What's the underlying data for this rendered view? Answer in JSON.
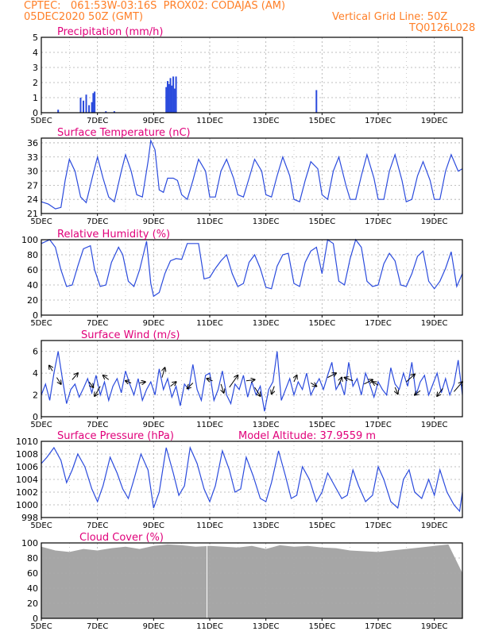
{
  "header": {
    "line1_left": "CPTEC:   061:53W-03:16S  PROX02: CODAJAS (AM)",
    "line2_left": "05DEC2020 50Z (GMT)",
    "line2_right": "Vertical Grid Line: 50Z",
    "line3_right": "TQ0126L028"
  },
  "colors": {
    "header": "#ff7f27",
    "title": "#e0007a",
    "series": "#2b4bdd",
    "cloud": "#a6a6a6",
    "grid": "#aaaaaa",
    "frame": "#000000"
  },
  "x_ticks": [
    "5DEC",
    "7DEC",
    "9DEC",
    "11DEC",
    "13DEC",
    "15DEC",
    "17DEC",
    "19DEC"
  ],
  "x_tick_days": [
    5,
    7,
    9,
    11,
    13,
    15,
    17,
    19
  ],
  "x_range": [
    5,
    20
  ],
  "chart_data": [
    {
      "id": "precip",
      "type": "bar",
      "title": "Precipitation (mm/h)",
      "ylim": [
        0,
        5
      ],
      "yticks": [
        0,
        1,
        2,
        3,
        4,
        5
      ],
      "grid": true,
      "x": [
        5.6,
        6.4,
        6.5,
        6.6,
        6.7,
        6.8,
        6.85,
        6.9,
        7.3,
        7.6,
        9.45,
        9.5,
        9.55,
        9.6,
        9.65,
        9.7,
        9.75,
        9.8,
        14.8
      ],
      "values": [
        0.2,
        1.0,
        0.8,
        1.2,
        0.5,
        0.7,
        1.3,
        1.4,
        0.1,
        0.1,
        1.7,
        2.1,
        1.9,
        2.3,
        1.8,
        2.4,
        1.6,
        2.4,
        1.5
      ]
    },
    {
      "id": "temp",
      "type": "line",
      "title": "Surface Temperature (nC)",
      "ylim": [
        21,
        37
      ],
      "yticks": [
        21,
        24,
        27,
        30,
        33,
        36
      ],
      "grid": true,
      "x": [
        5.0,
        5.25,
        5.5,
        5.7,
        5.85,
        6.0,
        6.2,
        6.4,
        6.6,
        6.85,
        7.0,
        7.2,
        7.4,
        7.6,
        7.85,
        8.0,
        8.2,
        8.4,
        8.6,
        8.8,
        8.9,
        9.05,
        9.2,
        9.35,
        9.5,
        9.7,
        9.85,
        10.0,
        10.2,
        10.4,
        10.6,
        10.85,
        11.0,
        11.2,
        11.4,
        11.6,
        11.85,
        12.0,
        12.2,
        12.4,
        12.6,
        12.85,
        13.0,
        13.2,
        13.4,
        13.6,
        13.85,
        14.0,
        14.2,
        14.4,
        14.6,
        14.85,
        15.0,
        15.2,
        15.4,
        15.6,
        15.85,
        16.0,
        16.2,
        16.4,
        16.6,
        16.85,
        17.0,
        17.2,
        17.4,
        17.6,
        17.85,
        18.0,
        18.2,
        18.4,
        18.6,
        18.85,
        19.0,
        19.2,
        19.4,
        19.6,
        19.85,
        20.0
      ],
      "values": [
        23.5,
        23.0,
        22.0,
        22.3,
        28.0,
        32.5,
        30.0,
        24.5,
        23.3,
        29.5,
        33.0,
        28.5,
        24.5,
        23.5,
        30.0,
        33.5,
        30.0,
        25.0,
        24.5,
        32.0,
        36.5,
        34.5,
        26.0,
        25.5,
        28.5,
        28.5,
        28.0,
        25.0,
        24.0,
        28.0,
        32.5,
        30.0,
        24.5,
        24.5,
        30.0,
        32.5,
        28.5,
        25.0,
        24.5,
        28.5,
        32.5,
        30.0,
        25.0,
        24.5,
        29.0,
        33.0,
        29.0,
        24.0,
        23.5,
        28.0,
        32.0,
        30.5,
        25.0,
        24.0,
        30.0,
        33.0,
        27.0,
        24.0,
        24.0,
        29.0,
        33.5,
        28.5,
        24.0,
        24.0,
        30.0,
        33.5,
        28.0,
        23.5,
        24.0,
        29.0,
        32.0,
        28.0,
        24.0,
        24.0,
        30.0,
        33.5,
        30.0,
        30.5
      ]
    },
    {
      "id": "rh",
      "type": "line",
      "title": "Relative Humidity (%)",
      "ylim": [
        0,
        100
      ],
      "yticks": [
        0,
        20,
        40,
        60,
        80,
        100
      ],
      "grid": true,
      "x": [
        5.0,
        5.3,
        5.5,
        5.7,
        5.9,
        6.1,
        6.3,
        6.5,
        6.75,
        6.9,
        7.1,
        7.3,
        7.5,
        7.75,
        7.9,
        8.1,
        8.3,
        8.5,
        8.75,
        8.9,
        9.0,
        9.2,
        9.4,
        9.6,
        9.8,
        10.0,
        10.2,
        10.4,
        10.6,
        10.8,
        11.0,
        11.2,
        11.4,
        11.6,
        11.8,
        12.0,
        12.2,
        12.4,
        12.6,
        12.8,
        13.0,
        13.2,
        13.4,
        13.6,
        13.8,
        14.0,
        14.2,
        14.4,
        14.6,
        14.8,
        15.0,
        15.2,
        15.4,
        15.6,
        15.8,
        16.0,
        16.2,
        16.4,
        16.6,
        16.8,
        17.0,
        17.2,
        17.4,
        17.6,
        17.8,
        18.0,
        18.2,
        18.4,
        18.6,
        18.8,
        19.0,
        19.2,
        19.4,
        19.6,
        19.8,
        20.0
      ],
      "values": [
        95,
        100,
        90,
        60,
        38,
        40,
        65,
        88,
        92,
        60,
        38,
        40,
        70,
        90,
        80,
        45,
        38,
        60,
        98,
        42,
        25,
        30,
        55,
        72,
        75,
        74,
        95,
        95,
        95,
        48,
        50,
        62,
        72,
        80,
        55,
        38,
        42,
        70,
        80,
        62,
        37,
        35,
        65,
        80,
        82,
        42,
        38,
        70,
        85,
        90,
        55,
        100,
        95,
        45,
        40,
        75,
        100,
        90,
        45,
        38,
        40,
        68,
        82,
        72,
        40,
        38,
        55,
        78,
        85,
        45,
        35,
        45,
        62,
        84,
        38,
        55
      ]
    },
    {
      "id": "wind",
      "type": "line",
      "title": "Surface Wind (m/s)",
      "ylim": [
        0,
        7
      ],
      "yticks": [
        0,
        2,
        4,
        6
      ],
      "grid": true,
      "x": [
        5.0,
        5.15,
        5.3,
        5.45,
        5.6,
        5.75,
        5.9,
        6.05,
        6.2,
        6.35,
        6.5,
        6.65,
        6.8,
        6.95,
        7.1,
        7.25,
        7.4,
        7.55,
        7.7,
        7.85,
        8.0,
        8.15,
        8.3,
        8.45,
        8.6,
        8.75,
        8.9,
        9.05,
        9.2,
        9.35,
        9.5,
        9.65,
        9.8,
        9.95,
        10.1,
        10.25,
        10.4,
        10.55,
        10.7,
        10.85,
        11.0,
        11.15,
        11.3,
        11.45,
        11.6,
        11.75,
        11.9,
        12.05,
        12.2,
        12.35,
        12.5,
        12.65,
        12.8,
        12.95,
        13.1,
        13.25,
        13.4,
        13.55,
        13.7,
        13.85,
        14.0,
        14.15,
        14.3,
        14.45,
        14.6,
        14.75,
        14.9,
        15.05,
        15.2,
        15.35,
        15.5,
        15.65,
        15.8,
        15.95,
        16.1,
        16.25,
        16.4,
        16.55,
        16.7,
        16.85,
        17.0,
        17.15,
        17.3,
        17.45,
        17.6,
        17.75,
        17.9,
        18.05,
        18.2,
        18.35,
        18.5,
        18.65,
        18.8,
        18.95,
        19.1,
        19.25,
        19.4,
        19.55,
        19.7,
        19.85,
        20.0
      ],
      "values": [
        2.0,
        3.0,
        1.5,
        4.0,
        6.0,
        3.5,
        1.2,
        2.5,
        3.0,
        1.8,
        2.6,
        3.5,
        2.2,
        3.8,
        2.0,
        3.2,
        1.5,
        2.8,
        3.5,
        2.2,
        4.2,
        3.0,
        2.0,
        3.5,
        1.5,
        2.5,
        3.2,
        2.0,
        4.4,
        2.5,
        3.5,
        1.8,
        2.8,
        1.0,
        3.0,
        2.5,
        4.8,
        2.5,
        1.5,
        3.8,
        4.0,
        1.5,
        2.5,
        4.2,
        2.0,
        1.2,
        3.0,
        2.5,
        3.8,
        1.8,
        3.2,
        2.0,
        2.8,
        0.5,
        2.5,
        3.2,
        6.0,
        1.5,
        2.5,
        3.5,
        2.0,
        3.2,
        2.5,
        4.0,
        2.0,
        2.8,
        3.5,
        2.5,
        3.8,
        5.0,
        2.5,
        3.2,
        2.0,
        5.0,
        2.8,
        3.5,
        2.0,
        4.0,
        3.0,
        1.8,
        3.2,
        2.5,
        2.0,
        4.5,
        3.0,
        2.5,
        4.0,
        2.8,
        5.0,
        2.0,
        3.2,
        3.8,
        2.0,
        3.0,
        4.0,
        2.2,
        3.5,
        2.0,
        3.0,
        5.2,
        2.0
      ]
    },
    {
      "id": "pressure",
      "type": "line",
      "title": "Surface Pressure (hPa)",
      "annotation": "Model Altitude: 37.9559 m",
      "ylim": [
        998,
        1010
      ],
      "yticks": [
        998,
        1000,
        1002,
        1004,
        1006,
        1008,
        1010
      ],
      "grid": true,
      "x": [
        5.0,
        5.2,
        5.45,
        5.7,
        5.9,
        6.1,
        6.3,
        6.55,
        6.8,
        7.0,
        7.2,
        7.45,
        7.7,
        7.9,
        8.1,
        8.3,
        8.55,
        8.8,
        9.0,
        9.2,
        9.45,
        9.7,
        9.9,
        10.1,
        10.3,
        10.55,
        10.8,
        11.0,
        11.2,
        11.45,
        11.7,
        11.9,
        12.1,
        12.3,
        12.55,
        12.8,
        13.0,
        13.2,
        13.45,
        13.7,
        13.9,
        14.1,
        14.3,
        14.55,
        14.8,
        15.0,
        15.2,
        15.45,
        15.7,
        15.9,
        16.1,
        16.3,
        16.55,
        16.8,
        17.0,
        17.2,
        17.45,
        17.7,
        17.9,
        18.1,
        18.3,
        18.55,
        18.8,
        19.0,
        19.2,
        19.45,
        19.7,
        19.9,
        20.0
      ],
      "values": [
        1006.5,
        1007.5,
        1009.0,
        1007.0,
        1003.5,
        1005.5,
        1008.0,
        1006.0,
        1002.5,
        1000.5,
        1003.0,
        1007.5,
        1005.0,
        1002.5,
        1001.0,
        1004.0,
        1008.0,
        1005.5,
        999.5,
        1002.0,
        1009.0,
        1005.0,
        1001.5,
        1003.0,
        1009.0,
        1006.5,
        1002.5,
        1000.5,
        1003.0,
        1008.5,
        1005.5,
        1002.0,
        1002.5,
        1007.5,
        1004.5,
        1001.0,
        1000.5,
        1003.5,
        1008.5,
        1004.5,
        1001.0,
        1001.5,
        1006.0,
        1004.0,
        1000.5,
        1002.0,
        1005.0,
        1003.0,
        1001.0,
        1001.5,
        1005.5,
        1003.0,
        1000.5,
        1001.5,
        1006.0,
        1004.0,
        1000.5,
        999.5,
        1004.0,
        1005.5,
        1002.0,
        1001.0,
        1004.0,
        1001.5,
        1005.5,
        1002.0,
        1000.0,
        999.0,
        1002.0
      ]
    },
    {
      "id": "cloud",
      "type": "area",
      "title": "Cloud Cover (%)",
      "ylim": [
        0,
        100
      ],
      "yticks": [
        0,
        20,
        40,
        60,
        80,
        100
      ],
      "grid": true,
      "x": [
        5.0,
        5.5,
        6.0,
        6.5,
        7.0,
        7.5,
        8.0,
        8.5,
        9.0,
        9.5,
        10.0,
        10.5,
        11.0,
        11.5,
        12.0,
        12.5,
        13.0,
        13.5,
        14.0,
        14.5,
        15.0,
        15.5,
        16.0,
        16.5,
        17.0,
        17.5,
        18.0,
        18.5,
        19.0,
        19.5,
        20.0
      ],
      "values": [
        95,
        90,
        88,
        92,
        90,
        93,
        95,
        92,
        96,
        98,
        97,
        95,
        96,
        95,
        94,
        96,
        92,
        97,
        95,
        96,
        94,
        93,
        90,
        89,
        88,
        90,
        92,
        94,
        96,
        98,
        60
      ]
    }
  ]
}
